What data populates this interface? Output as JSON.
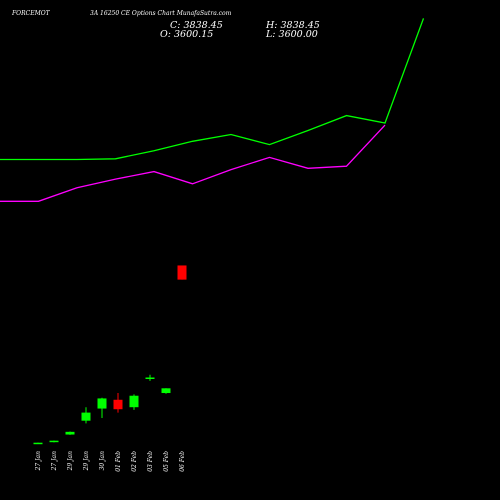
{
  "header": {
    "symbol": "FORCEMOT",
    "title": "3A 16250 CE Options Chart MunafaSutra.com",
    "close": "C: 3838.45",
    "high": "H: 3838.45",
    "open": "O: 3600.15",
    "low": "L: 3600.00"
  },
  "chart_data": {
    "type": "candlestick",
    "background": "#000000",
    "up_color": "#00ff00",
    "down_color": "#ff0000",
    "categories": [
      "27 Jan",
      "27 Jan",
      "29 Jan",
      "29 Jan",
      "30 Jan",
      "01 Feb",
      "02 Feb",
      "03 Feb",
      "05 Feb",
      "06 Feb"
    ],
    "candles": [
      {
        "open": 3,
        "high": 3.6,
        "low": 2.4,
        "close": 3.4
      },
      {
        "open": 4.2,
        "high": 6.6,
        "low": 3.8,
        "close": 6.4
      },
      {
        "open": 15.5,
        "high": 20,
        "low": 15,
        "close": 19.5
      },
      {
        "open": 36,
        "high": 56,
        "low": 32,
        "close": 48
      },
      {
        "open": 54,
        "high": 70,
        "low": 40,
        "close": 69
      },
      {
        "open": 67,
        "high": 77,
        "low": 48,
        "close": 53
      },
      {
        "open": 56,
        "high": 75,
        "low": 52,
        "close": 73
      },
      {
        "open": 99,
        "high": 104,
        "low": 95,
        "close": 100
      },
      {
        "open": 77,
        "high": 84,
        "low": 76,
        "close": 84
      },
      {
        "open": 266,
        "high": 266,
        "low": 245,
        "close": 245
      }
    ],
    "upper_line": {
      "color": "#00ff00",
      "values": [
        423,
        423,
        423,
        424,
        436,
        450,
        460,
        445,
        466,
        488,
        477,
        632
      ]
    },
    "lower_line": {
      "color": "#ff00ff",
      "values": [
        361,
        361,
        381,
        394,
        405,
        387,
        408,
        426,
        410,
        413,
        474
      ]
    },
    "ylim": [
      0,
      600
    ]
  }
}
